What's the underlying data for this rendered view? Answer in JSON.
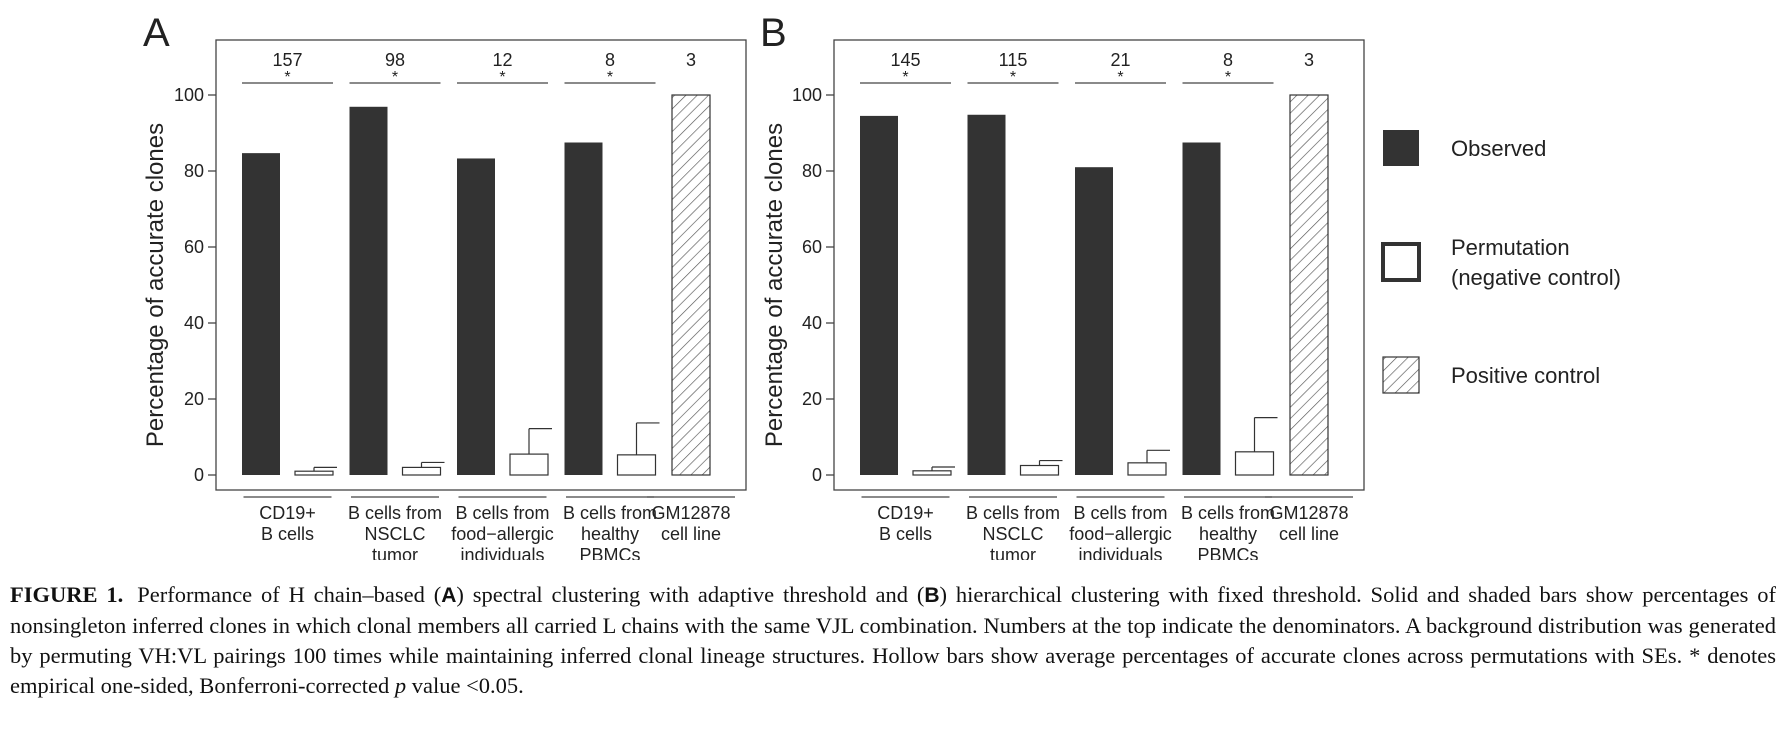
{
  "chart_data": [
    {
      "type": "bar",
      "panel_label": "A",
      "ylabel": "Percentage of accurate clones",
      "ylim": [
        0,
        100
      ],
      "yticks": [
        0,
        20,
        40,
        60,
        80,
        100
      ],
      "categories": [
        [
          "CD19+",
          "B cells"
        ],
        [
          "B cells from",
          "NSCLC",
          "tumor"
        ],
        [
          "B cells from",
          "food−allergic",
          "individuals"
        ],
        [
          "B cells from",
          "healthy",
          "PBMCs"
        ],
        [
          "GM12878",
          "cell line"
        ]
      ],
      "denominators": [
        "157",
        "98",
        "12",
        "8",
        "3"
      ],
      "significance": [
        "*",
        "*",
        "*",
        "*",
        ""
      ],
      "series": [
        {
          "key": "observed",
          "values": [
            84.7,
            96.9,
            83.3,
            87.5,
            null
          ]
        },
        {
          "key": "permutation",
          "values": [
            1.0,
            2.0,
            5.5,
            5.3,
            null
          ],
          "se": [
            1.0,
            1.3,
            6.7,
            8.4,
            null
          ]
        },
        {
          "key": "positive",
          "values": [
            null,
            null,
            null,
            null,
            100
          ]
        }
      ]
    },
    {
      "type": "bar",
      "panel_label": "B",
      "ylabel": "Percentage of accurate clones",
      "ylim": [
        0,
        100
      ],
      "yticks": [
        0,
        20,
        40,
        60,
        80,
        100
      ],
      "categories": [
        [
          "CD19+",
          "B cells"
        ],
        [
          "B cells from",
          "NSCLC",
          "tumor"
        ],
        [
          "B cells from",
          "food−allergic",
          "individuals"
        ],
        [
          "B cells from",
          "healthy",
          "PBMCs"
        ],
        [
          "GM12878",
          "cell line"
        ]
      ],
      "denominators": [
        "145",
        "115",
        "21",
        "8",
        "3"
      ],
      "significance": [
        "*",
        "*",
        "*",
        "*",
        ""
      ],
      "series": [
        {
          "key": "observed",
          "values": [
            94.5,
            94.8,
            81.0,
            87.5,
            null
          ]
        },
        {
          "key": "permutation",
          "values": [
            1.1,
            2.5,
            3.2,
            6.1,
            null
          ],
          "se": [
            1.0,
            1.3,
            3.3,
            9.0,
            null
          ]
        },
        {
          "key": "positive",
          "values": [
            null,
            null,
            null,
            null,
            100
          ]
        }
      ]
    }
  ],
  "legend": [
    {
      "key": "observed",
      "lines": [
        "Observed"
      ]
    },
    {
      "key": "permutation",
      "lines": [
        "Permutation",
        "(negative control)"
      ]
    },
    {
      "key": "positive",
      "lines": [
        "Positive control"
      ]
    }
  ],
  "colors": {
    "observed": "#333333",
    "hollow": "#ffffff",
    "stroke": "#333333",
    "hatch": "#555555"
  },
  "caption": {
    "label": "FIGURE 1.",
    "text_parts": [
      "Performance of H chain–based (",
      "A",
      ") spectral clustering with adaptive threshold and (",
      "B",
      ") hierarchical clustering with fixed threshold. Solid and shaded bars show percentages of nonsingleton inferred clones in which clonal members all carried L chains with the same VJL combination. Numbers at the top indicate the denominators. A background distribution was generated by permuting VH:VL pairings 100 times while maintaining inferred clonal lineage structures. Hollow bars show average percentages of accurate clones across permutations with SEs. * denotes empirical one-sided, Bonferroni-corrected ",
      "p",
      " value <0.05."
    ]
  }
}
